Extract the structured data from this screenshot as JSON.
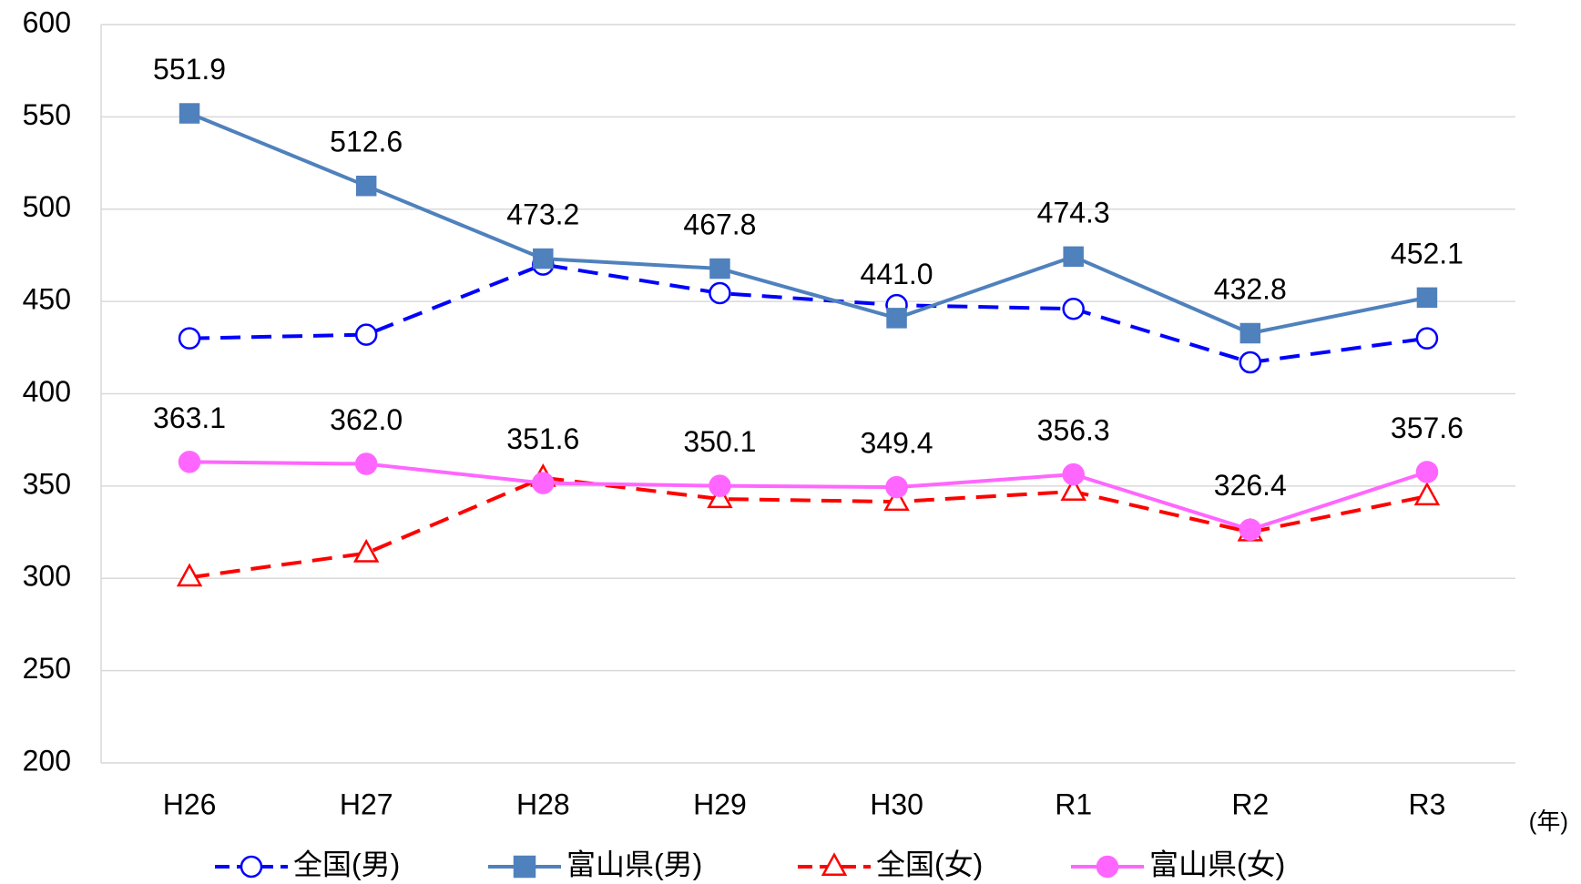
{
  "chart_data": {
    "type": "line",
    "categories": [
      "H26",
      "H27",
      "H28",
      "H29",
      "H30",
      "R1",
      "R2",
      "R3"
    ],
    "x_unit_label": "(年)",
    "ylim": [
      200,
      600
    ],
    "yticks": [
      200,
      250,
      300,
      350,
      400,
      450,
      500,
      550,
      600
    ],
    "grid": true,
    "legend": "bottom",
    "series": [
      {
        "name": "全国(男)",
        "color": "#0000ff",
        "dashed": true,
        "marker": "circle",
        "marker_filled": false,
        "values": [
          430,
          432,
          470,
          454.5,
          448,
          446,
          417,
          430
        ]
      },
      {
        "name": "富山県(男)",
        "color": "#4f81bd",
        "dashed": false,
        "marker": "square",
        "marker_filled": true,
        "values": [
          551.9,
          512.6,
          473.2,
          467.8,
          441.0,
          474.3,
          432.8,
          452.1
        ],
        "value_labels": [
          "551.9",
          "512.6",
          "473.2",
          "467.8",
          "441.0",
          "474.3",
          "432.8",
          "452.1"
        ]
      },
      {
        "name": "全国(女)",
        "color": "#ff0000",
        "dashed": true,
        "marker": "triangle",
        "marker_filled": false,
        "values": [
          300.5,
          313.6,
          354.5,
          343,
          341.5,
          347,
          325,
          344.5
        ]
      },
      {
        "name": "富山県(女)",
        "color": "#ff66ff",
        "dashed": false,
        "marker": "circle",
        "marker_filled": true,
        "values": [
          363.1,
          362.0,
          351.6,
          350.1,
          349.4,
          356.3,
          326.4,
          357.6
        ],
        "value_labels": [
          "363.1",
          "362.0",
          "351.6",
          "350.1",
          "349.4",
          "356.3",
          "326.4",
          "357.6"
        ]
      }
    ]
  }
}
